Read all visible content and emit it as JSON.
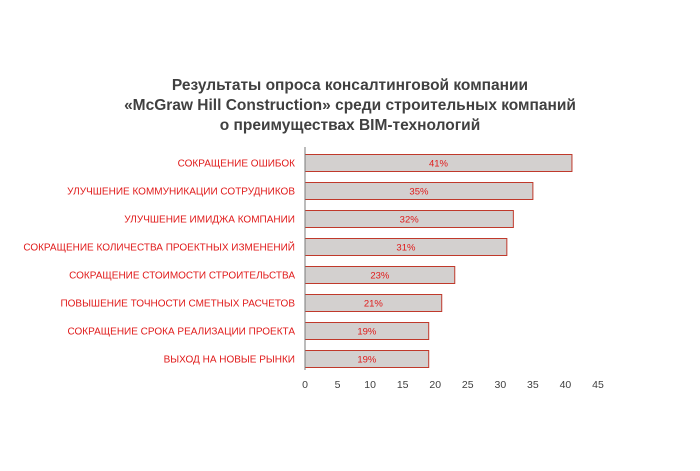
{
  "chart_data": {
    "type": "bar",
    "orientation": "horizontal",
    "title_lines": [
      "Результаты опроса консалтинговой компании",
      "«McGraw Hill Construction» среди строительных компаний",
      "о преимуществах BIM-технологий"
    ],
    "categories": [
      "СОКРАЩЕНИЕ ОШИБОК",
      "УЛУЧШЕНИЕ КОММУНИКАЦИИ СОТРУДНИКОВ",
      "УЛУЧШЕНИЕ ИМИДЖА КОМПАНИИ",
      "СОКРАЩЕНИЕ КОЛИЧЕСТВА ПРОЕКТНЫХ ИЗМЕНЕНИЙ",
      "СОКРАЩЕНИЕ СТОИМОСТИ СТРОИТЕЛЬСТВА",
      "ПОВЫШЕНИЕ ТОЧНОСТИ СМЕТНЫХ РАСЧЕТОВ",
      "СОКРАЩЕНИЕ СРОКА РЕАЛИЗАЦИИ ПРОЕКТА",
      "ВЫХОД НА НОВЫЕ РЫНКИ"
    ],
    "values": [
      41,
      35,
      32,
      31,
      23,
      21,
      19,
      19
    ],
    "data_labels": [
      "41%",
      "35%",
      "32%",
      "31%",
      "23%",
      "21%",
      "19%",
      "19%"
    ],
    "xticks": [
      0,
      5,
      10,
      15,
      20,
      25,
      30,
      35,
      40,
      45
    ],
    "xlim": [
      0,
      45
    ],
    "grid": false,
    "colors": {
      "bar_fill": "#d3d0cf",
      "bar_border": "#c0392b",
      "category_text": "#e01a1a",
      "value_text": "#e01a1a",
      "axis_line": "#7a7a7a",
      "title_text": "#404040",
      "tick_text": "#404040"
    }
  }
}
